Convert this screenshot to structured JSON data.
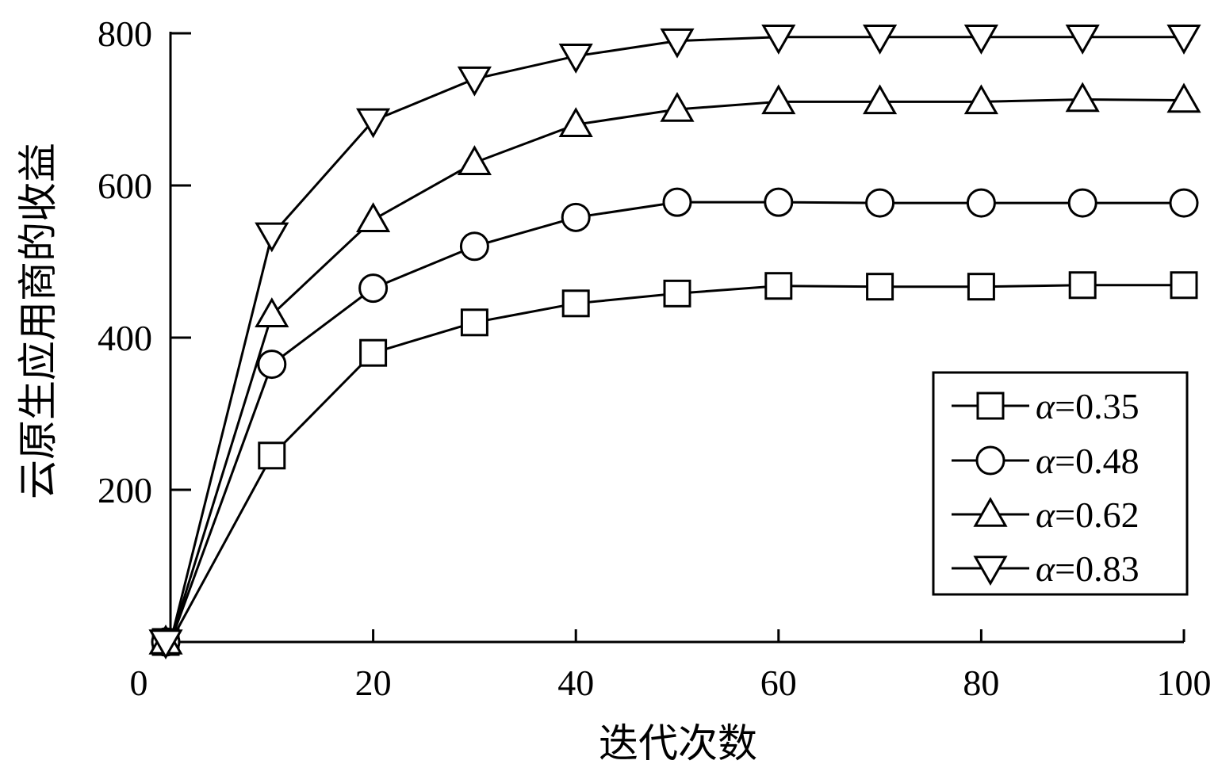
{
  "chart_data": {
    "type": "line",
    "xlabel": "迭代次数",
    "ylabel": "云原生应用商的收益",
    "xlim": [
      0,
      100
    ],
    "ylim": [
      0,
      800
    ],
    "x_ticks": [
      0,
      20,
      40,
      60,
      80,
      100
    ],
    "y_ticks": [
      200,
      400,
      600,
      800
    ],
    "x_tick_labels": [
      "0",
      "20",
      "40",
      "60",
      "80",
      "100"
    ],
    "y_tick_labels": [
      "200",
      "400",
      "600",
      "800"
    ],
    "grid": false,
    "legend_position": "bottom-right",
    "x": [
      0,
      10,
      20,
      30,
      40,
      50,
      60,
      70,
      80,
      90,
      100
    ],
    "series": [
      {
        "name": "α=0.35",
        "greek": "α",
        "value_text": "=0.35",
        "marker": "square",
        "values": [
          0,
          245,
          380,
          420,
          445,
          458,
          468,
          467,
          467,
          469,
          469
        ]
      },
      {
        "name": "α=0.48",
        "greek": "α",
        "value_text": "=0.48",
        "marker": "circle",
        "values": [
          0,
          365,
          465,
          520,
          558,
          578,
          578,
          577,
          577,
          577,
          577
        ]
      },
      {
        "name": "α=0.62",
        "greek": "α",
        "value_text": "=0.62",
        "marker": "triangle-up",
        "values": [
          0,
          430,
          555,
          630,
          680,
          700,
          710,
          710,
          710,
          713,
          712
        ]
      },
      {
        "name": "α=0.83",
        "greek": "α",
        "value_text": "=0.83",
        "marker": "triangle-down",
        "values": [
          0,
          535,
          685,
          740,
          770,
          790,
          795,
          795,
          795,
          795,
          795
        ]
      }
    ]
  }
}
